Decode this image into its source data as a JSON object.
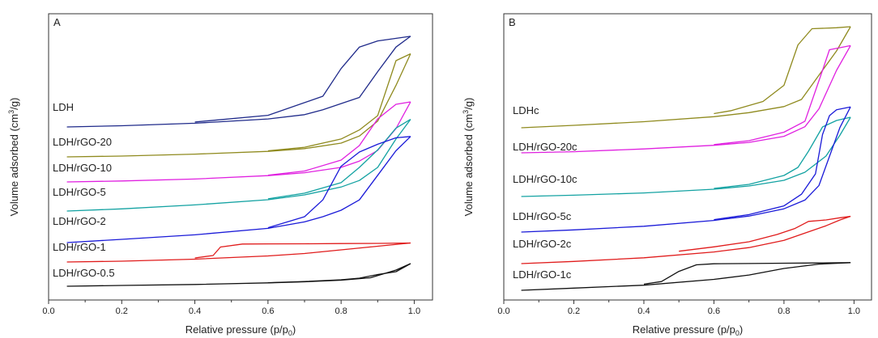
{
  "chart_data": [
    {
      "type": "line",
      "panel_label": "A",
      "xlabel_main": "Relative pressure (p/p",
      "xlabel_sub": "0",
      "xlabel_end": ")",
      "ylabel_main": "Volume adsorbed (cm",
      "ylabel_sup": "3",
      "ylabel_end": "/g)",
      "xlim": [
        0.0,
        1.05
      ],
      "xticks": [
        "0.0",
        "0.2",
        "0.4",
        "0.6",
        "0.8",
        "1.0"
      ],
      "xtick_values": [
        0.0,
        0.2,
        0.4,
        0.6,
        0.8,
        1.0
      ],
      "y_ticks_shown": false,
      "series": [
        {
          "name": "LDH",
          "color": "#1f2a8a",
          "adsorption": [
            [
              0.05,
              0.0
            ],
            [
              0.2,
              0.04
            ],
            [
              0.4,
              0.12
            ],
            [
              0.6,
              0.26
            ],
            [
              0.7,
              0.4
            ],
            [
              0.75,
              0.56
            ],
            [
              0.85,
              0.96
            ],
            [
              0.9,
              1.8
            ],
            [
              0.95,
              2.6
            ],
            [
              0.99,
              2.95
            ]
          ],
          "desorption": [
            [
              0.99,
              2.95
            ],
            [
              0.9,
              2.8
            ],
            [
              0.85,
              2.6
            ],
            [
              0.8,
              1.9
            ],
            [
              0.75,
              1.0
            ],
            [
              0.6,
              0.38
            ],
            [
              0.4,
              0.16
            ]
          ]
        },
        {
          "name": "LDH/rGO-20",
          "color": "#8f8a1e",
          "adsorption": [
            [
              0.05,
              0.0
            ],
            [
              0.2,
              0.03
            ],
            [
              0.4,
              0.1
            ],
            [
              0.6,
              0.2
            ],
            [
              0.7,
              0.3
            ],
            [
              0.8,
              0.5
            ],
            [
              0.85,
              0.76
            ],
            [
              0.9,
              1.3
            ],
            [
              0.95,
              2.6
            ],
            [
              0.99,
              3.75
            ]
          ],
          "desorption": [
            [
              0.99,
              3.75
            ],
            [
              0.95,
              3.5
            ],
            [
              0.9,
              1.5
            ],
            [
              0.85,
              0.98
            ],
            [
              0.8,
              0.65
            ],
            [
              0.7,
              0.35
            ],
            [
              0.6,
              0.22
            ]
          ]
        },
        {
          "name": "LDH/rGO-10",
          "color": "#e020e0",
          "adsorption": [
            [
              0.05,
              0.0
            ],
            [
              0.2,
              0.04
            ],
            [
              0.4,
              0.12
            ],
            [
              0.6,
              0.26
            ],
            [
              0.7,
              0.38
            ],
            [
              0.8,
              0.6
            ],
            [
              0.85,
              0.86
            ],
            [
              0.9,
              1.3
            ],
            [
              0.95,
              2.2
            ],
            [
              0.99,
              3.3
            ]
          ],
          "desorption": [
            [
              0.99,
              3.3
            ],
            [
              0.95,
              3.2
            ],
            [
              0.9,
              2.6
            ],
            [
              0.85,
              1.5
            ],
            [
              0.8,
              0.9
            ],
            [
              0.7,
              0.45
            ],
            [
              0.6,
              0.28
            ]
          ]
        },
        {
          "name": "LDH/rGO-5",
          "color": "#13a2a2",
          "adsorption": [
            [
              0.05,
              0.0
            ],
            [
              0.2,
              0.1
            ],
            [
              0.4,
              0.28
            ],
            [
              0.6,
              0.52
            ],
            [
              0.7,
              0.74
            ],
            [
              0.8,
              1.1
            ],
            [
              0.85,
              1.4
            ],
            [
              0.9,
              2.0
            ],
            [
              0.95,
              3.3
            ],
            [
              0.99,
              4.2
            ]
          ],
          "desorption": [
            [
              0.99,
              4.2
            ],
            [
              0.95,
              3.8
            ],
            [
              0.9,
              2.8
            ],
            [
              0.85,
              2.0
            ],
            [
              0.8,
              1.3
            ],
            [
              0.7,
              0.82
            ],
            [
              0.6,
              0.56
            ]
          ]
        },
        {
          "name": "LDH/rGO-2",
          "color": "#1a1ad8",
          "adsorption": [
            [
              0.05,
              0.0
            ],
            [
              0.2,
              0.25
            ],
            [
              0.4,
              0.6
            ],
            [
              0.6,
              1.1
            ],
            [
              0.7,
              1.6
            ],
            [
              0.75,
              2.0
            ],
            [
              0.8,
              2.5
            ],
            [
              0.85,
              3.3
            ],
            [
              0.9,
              5.2
            ],
            [
              0.95,
              7.1
            ],
            [
              0.99,
              8.2
            ]
          ],
          "desorption": [
            [
              0.99,
              8.2
            ],
            [
              0.95,
              8.1
            ],
            [
              0.9,
              7.6
            ],
            [
              0.85,
              7.0
            ],
            [
              0.8,
              5.9
            ],
            [
              0.75,
              3.3
            ],
            [
              0.7,
              2.0
            ],
            [
              0.6,
              1.15
            ]
          ]
        },
        {
          "name": "LDH/rGO-1",
          "color": "#e01b1b",
          "adsorption": [
            [
              0.05,
              0.0
            ],
            [
              0.2,
              0.1
            ],
            [
              0.4,
              0.35
            ],
            [
              0.6,
              0.75
            ],
            [
              0.7,
              1.05
            ],
            [
              0.8,
              1.5
            ],
            [
              0.9,
              1.95
            ],
            [
              0.99,
              2.35
            ]
          ],
          "desorption": [
            [
              0.99,
              2.35
            ],
            [
              0.9,
              2.3
            ],
            [
              0.8,
              2.28
            ],
            [
              0.7,
              2.25
            ],
            [
              0.6,
              2.24
            ],
            [
              0.53,
              2.22
            ],
            [
              0.47,
              1.85
            ],
            [
              0.45,
              0.8
            ],
            [
              0.4,
              0.5
            ]
          ]
        },
        {
          "name": "LDH/rGO-0.5",
          "color": "#111111",
          "adsorption": [
            [
              0.05,
              0.0
            ],
            [
              0.2,
              0.1
            ],
            [
              0.4,
              0.22
            ],
            [
              0.6,
              0.42
            ],
            [
              0.7,
              0.55
            ],
            [
              0.8,
              0.75
            ],
            [
              0.88,
              1.05
            ],
            [
              0.95,
              2.0
            ],
            [
              0.99,
              2.8
            ]
          ],
          "desorption": [
            [
              0.99,
              2.8
            ],
            [
              0.95,
              1.8
            ],
            [
              0.9,
              1.45
            ],
            [
              0.85,
              1.0
            ],
            [
              0.8,
              0.8
            ],
            [
              0.7,
              0.58
            ],
            [
              0.6,
              0.44
            ]
          ]
        }
      ]
    },
    {
      "type": "line",
      "panel_label": "B",
      "xlabel_main": "Relative pressure (p/p",
      "xlabel_sub": "0",
      "xlabel_end": ")",
      "ylabel_main": "Volume adsorbed (cm",
      "ylabel_sup": "3",
      "ylabel_end": "/g)",
      "xlim": [
        0.0,
        1.05
      ],
      "xticks": [
        "0.0",
        "0.2",
        "0.4",
        "0.6",
        "0.8",
        "1.0"
      ],
      "xtick_values": [
        0.0,
        0.2,
        0.4,
        0.6,
        0.8,
        1.0
      ],
      "y_ticks_shown": false,
      "series": [
        {
          "name": "LDHc",
          "color": "#8f8a1e",
          "adsorption": [
            [
              0.05,
              0.0
            ],
            [
              0.2,
              0.12
            ],
            [
              0.4,
              0.3
            ],
            [
              0.6,
              0.55
            ],
            [
              0.7,
              0.75
            ],
            [
              0.8,
              1.05
            ],
            [
              0.85,
              1.4
            ],
            [
              0.9,
              2.6
            ],
            [
              0.95,
              3.8
            ],
            [
              0.99,
              5.0
            ]
          ],
          "desorption": [
            [
              0.99,
              5.0
            ],
            [
              0.95,
              4.95
            ],
            [
              0.88,
              4.9
            ],
            [
              0.84,
              4.1
            ],
            [
              0.8,
              2.1
            ],
            [
              0.74,
              1.3
            ],
            [
              0.65,
              0.85
            ],
            [
              0.6,
              0.7
            ]
          ]
        },
        {
          "name": "LDH/rGO-20c",
          "color": "#e020e0",
          "adsorption": [
            [
              0.05,
              0.0
            ],
            [
              0.2,
              0.08
            ],
            [
              0.4,
              0.28
            ],
            [
              0.6,
              0.55
            ],
            [
              0.7,
              0.76
            ],
            [
              0.8,
              1.2
            ],
            [
              0.86,
              1.9
            ],
            [
              0.9,
              3.2
            ],
            [
              0.95,
              6.0
            ],
            [
              0.99,
              7.8
            ]
          ],
          "desorption": [
            [
              0.99,
              7.8
            ],
            [
              0.97,
              7.7
            ],
            [
              0.93,
              7.5
            ],
            [
              0.91,
              6.0
            ],
            [
              0.86,
              2.3
            ],
            [
              0.8,
              1.5
            ],
            [
              0.7,
              0.88
            ],
            [
              0.6,
              0.6
            ]
          ]
        },
        {
          "name": "LDH/rGO-10c",
          "color": "#13a2a2",
          "adsorption": [
            [
              0.05,
              0.0
            ],
            [
              0.2,
              0.08
            ],
            [
              0.4,
              0.22
            ],
            [
              0.6,
              0.45
            ],
            [
              0.7,
              0.65
            ],
            [
              0.8,
              1.0
            ],
            [
              0.86,
              1.5
            ],
            [
              0.92,
              2.5
            ],
            [
              0.96,
              3.8
            ],
            [
              0.99,
              4.9
            ]
          ],
          "desorption": [
            [
              0.99,
              4.9
            ],
            [
              0.95,
              4.7
            ],
            [
              0.91,
              4.3
            ],
            [
              0.87,
              2.8
            ],
            [
              0.84,
              1.8
            ],
            [
              0.8,
              1.3
            ],
            [
              0.7,
              0.75
            ],
            [
              0.6,
              0.5
            ]
          ]
        },
        {
          "name": "LDH/rGO-5c",
          "color": "#1a1ad8",
          "adsorption": [
            [
              0.05,
              0.0
            ],
            [
              0.2,
              0.15
            ],
            [
              0.4,
              0.4
            ],
            [
              0.6,
              0.8
            ],
            [
              0.7,
              1.1
            ],
            [
              0.8,
              1.6
            ],
            [
              0.86,
              2.2
            ],
            [
              0.9,
              3.2
            ],
            [
              0.93,
              5.2
            ],
            [
              0.96,
              7.2
            ],
            [
              0.99,
              8.6
            ]
          ],
          "desorption": [
            [
              0.99,
              8.6
            ],
            [
              0.95,
              8.4
            ],
            [
              0.93,
              8.0
            ],
            [
              0.91,
              6.7
            ],
            [
              0.89,
              4.0
            ],
            [
              0.85,
              2.6
            ],
            [
              0.8,
              1.8
            ],
            [
              0.7,
              1.2
            ],
            [
              0.6,
              0.85
            ]
          ]
        },
        {
          "name": "LDH/rGO-2c",
          "color": "#e01b1b",
          "adsorption": [
            [
              0.05,
              0.0
            ],
            [
              0.2,
              0.15
            ],
            [
              0.4,
              0.4
            ],
            [
              0.6,
              0.8
            ],
            [
              0.7,
              1.1
            ],
            [
              0.8,
              1.6
            ],
            [
              0.86,
              2.1
            ],
            [
              0.92,
              2.6
            ],
            [
              0.96,
              3.0
            ],
            [
              0.99,
              3.25
            ]
          ],
          "desorption": [
            [
              0.99,
              3.25
            ],
            [
              0.96,
              3.15
            ],
            [
              0.92,
              3.0
            ],
            [
              0.87,
              2.9
            ],
            [
              0.83,
              2.4
            ],
            [
              0.78,
              2.0
            ],
            [
              0.7,
              1.5
            ],
            [
              0.6,
              1.15
            ],
            [
              0.5,
              0.85
            ]
          ]
        },
        {
          "name": "LDH/rGO-1c",
          "color": "#111111",
          "adsorption": [
            [
              0.05,
              0.0
            ],
            [
              0.2,
              0.15
            ],
            [
              0.4,
              0.35
            ],
            [
              0.6,
              0.75
            ],
            [
              0.7,
              1.05
            ],
            [
              0.8,
              1.5
            ],
            [
              0.9,
              1.8
            ],
            [
              0.99,
              1.9
            ]
          ],
          "desorption": [
            [
              0.99,
              1.9
            ],
            [
              0.9,
              1.88
            ],
            [
              0.8,
              1.86
            ],
            [
              0.7,
              1.84
            ],
            [
              0.6,
              1.82
            ],
            [
              0.55,
              1.75
            ],
            [
              0.5,
              1.3
            ],
            [
              0.45,
              0.6
            ],
            [
              0.4,
              0.42
            ]
          ]
        }
      ]
    }
  ]
}
